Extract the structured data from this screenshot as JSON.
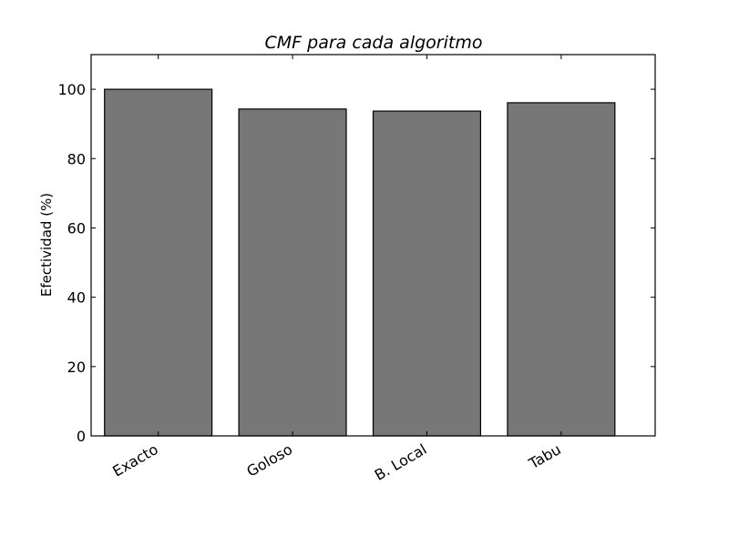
{
  "chart_data": {
    "type": "bar",
    "title": "CMF para cada algoritmo",
    "xlabel": "",
    "ylabel": "Efectividad (%)",
    "categories": [
      "Exacto",
      "Goloso",
      "B. Local",
      "Tabu"
    ],
    "values": [
      100,
      94.3,
      93.7,
      96.1
    ],
    "ylim": [
      0,
      110
    ],
    "yticks": [
      0,
      20,
      40,
      60,
      80,
      100
    ],
    "bar_color": "#777777",
    "grid": false,
    "legend": "none"
  }
}
